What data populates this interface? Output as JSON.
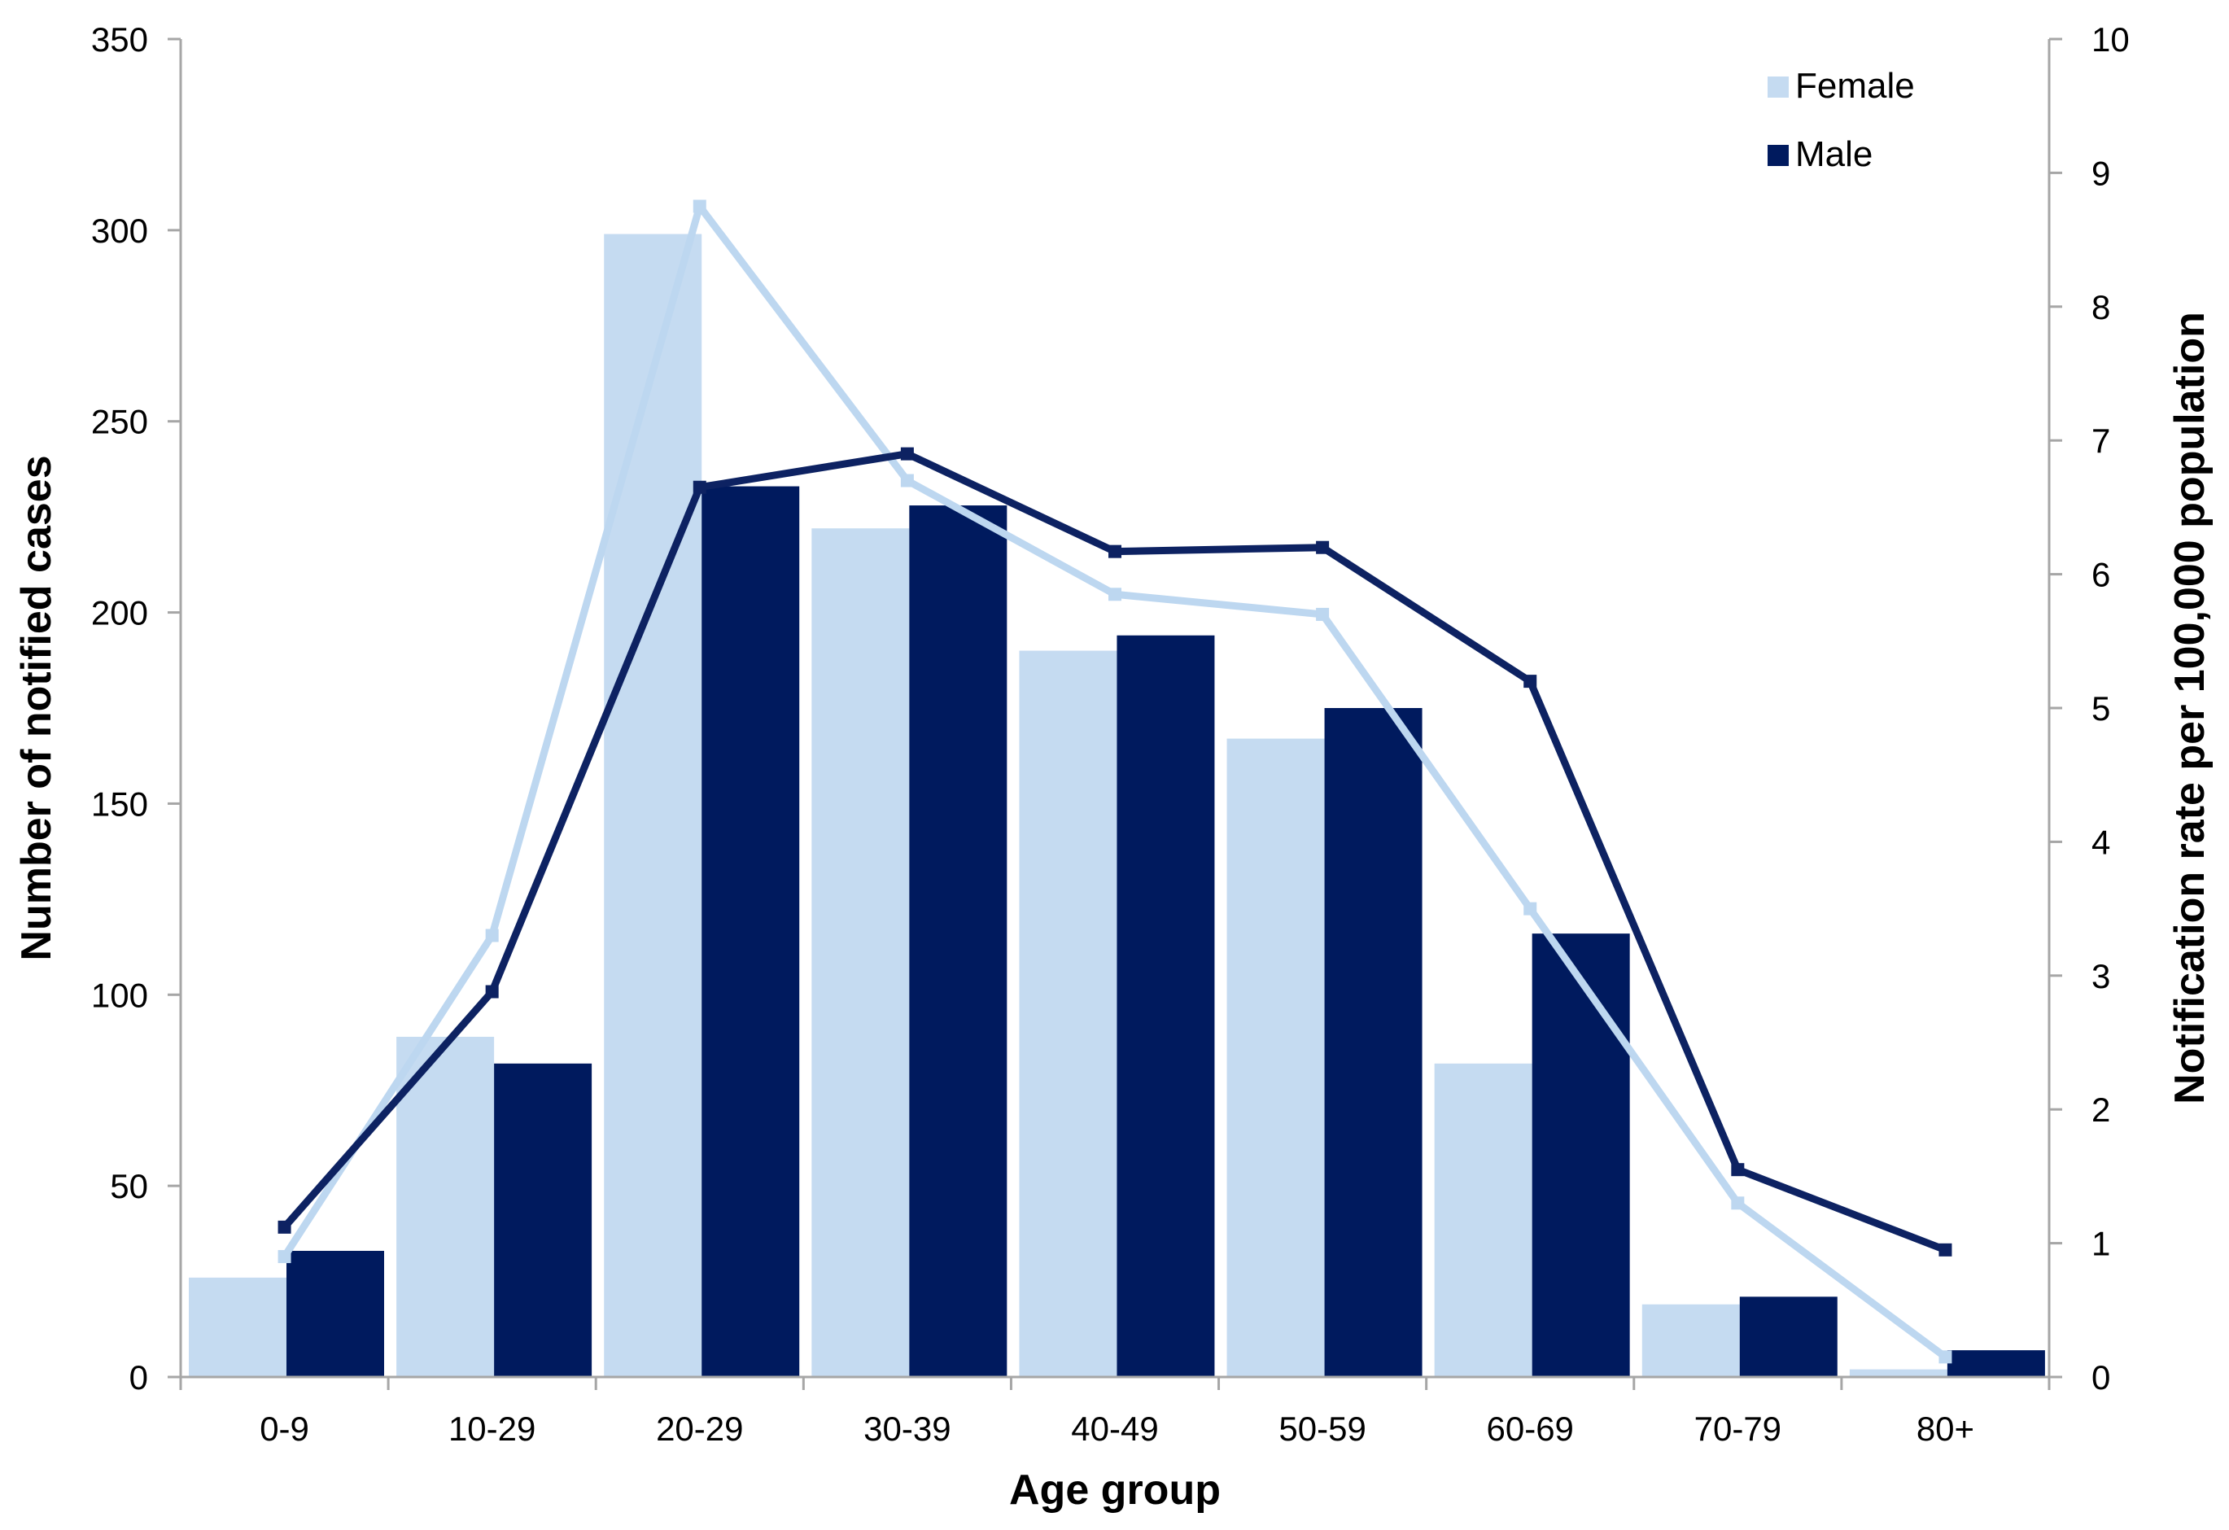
{
  "chart_data": {
    "type": "bar",
    "xlabel": "Age group",
    "ylabel": "Number of notified cases",
    "y2label": "Notification rate per 100,000 population",
    "categories": [
      "0-9",
      "10-29",
      "20-29",
      "30-39",
      "40-49",
      "50-59",
      "60-69",
      "70-79",
      "80+"
    ],
    "ylim": [
      0,
      350
    ],
    "yticks": [
      0,
      50,
      100,
      150,
      200,
      250,
      300,
      350
    ],
    "y2lim": [
      0,
      10
    ],
    "y2ticks": [
      0,
      1,
      2,
      3,
      4,
      5,
      6,
      7,
      8,
      9,
      10
    ],
    "legend": {
      "position": "top-right",
      "entries": [
        "Female",
        "Male"
      ]
    },
    "grid": false,
    "bar_series": [
      {
        "name": "Female",
        "color": "#c5dbf1",
        "values": [
          26,
          89,
          299,
          222,
          190,
          167,
          82,
          19,
          2
        ]
      },
      {
        "name": "Male",
        "color": "#001a5e",
        "values": [
          33,
          82,
          233,
          228,
          194,
          175,
          116,
          21,
          7
        ]
      }
    ],
    "line_series": [
      {
        "name": "Female rate",
        "axis": "right",
        "color": "#bdd7f0",
        "values": [
          0.9,
          3.3,
          8.75,
          6.7,
          5.85,
          5.7,
          3.5,
          1.3,
          0.15
        ]
      },
      {
        "name": "Male rate",
        "axis": "right",
        "color": "#0d2262",
        "values": [
          1.12,
          2.88,
          6.65,
          6.9,
          6.17,
          6.2,
          5.2,
          1.55,
          0.95
        ]
      }
    ]
  }
}
